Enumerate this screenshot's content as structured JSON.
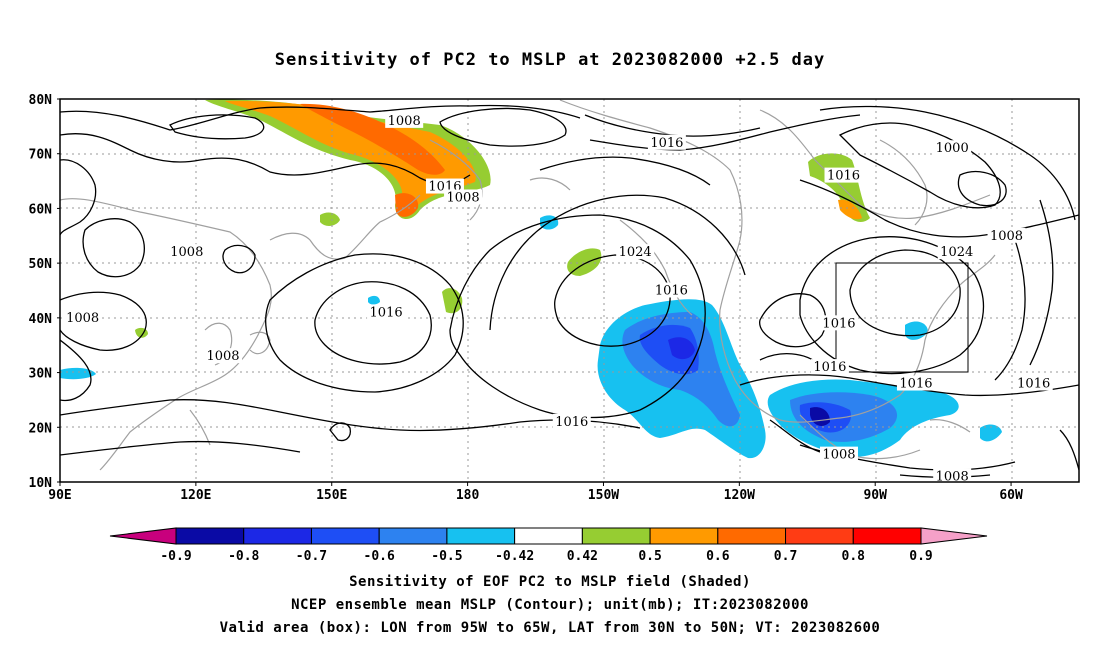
{
  "title": "Sensitivity of PC2 to MSLP at 2023082000 +2.5 day",
  "map": {
    "lat_labels": [
      "80N",
      "70N",
      "60N",
      "50N",
      "40N",
      "30N",
      "20N",
      "10N"
    ],
    "lon_labels": [
      "90E",
      "120E",
      "150E",
      "180",
      "150W",
      "120W",
      "90W",
      "60W"
    ],
    "isobar_labels": [
      {
        "text": "1008",
        "lon": 166,
        "lat": 76
      },
      {
        "text": "1016",
        "lon": -136,
        "lat": 72
      },
      {
        "text": "1000",
        "lon": -73,
        "lat": 71
      },
      {
        "text": "1016",
        "lon": 175,
        "lat": 64
      },
      {
        "text": "1008",
        "lon": 179,
        "lat": 62
      },
      {
        "text": "1016",
        "lon": -97,
        "lat": 66
      },
      {
        "text": "1008",
        "lon": -61,
        "lat": 55
      },
      {
        "text": "1008",
        "lon": 118,
        "lat": 52
      },
      {
        "text": "1024",
        "lon": -143,
        "lat": 52
      },
      {
        "text": "1024",
        "lon": -72,
        "lat": 52
      },
      {
        "text": "1016",
        "lon": -135,
        "lat": 45
      },
      {
        "text": "1016",
        "lon": 162,
        "lat": 41
      },
      {
        "text": "1008",
        "lon": 95,
        "lat": 40
      },
      {
        "text": "1016",
        "lon": -98,
        "lat": 39
      },
      {
        "text": "1008",
        "lon": 126,
        "lat": 33
      },
      {
        "text": "1016",
        "lon": -100,
        "lat": 31
      },
      {
        "text": "1016",
        "lon": -81,
        "lat": 28
      },
      {
        "text": "1016",
        "lon": -55,
        "lat": 28
      },
      {
        "text": "1016",
        "lon": -157,
        "lat": 21
      },
      {
        "text": "1008",
        "lon": -98,
        "lat": 15
      },
      {
        "text": "1008",
        "lon": -73,
        "lat": 11
      }
    ]
  },
  "valid_box": {
    "lon_min": -95,
    "lon_max": -65,
    "lat_min": 30,
    "lat_max": 50
  },
  "colorbar": {
    "labels": [
      "-0.9",
      "-0.8",
      "-0.7",
      "-0.6",
      "-0.5",
      "-0.42",
      "0.42",
      "0.5",
      "0.6",
      "0.7",
      "0.8",
      "0.9"
    ],
    "colors": [
      "#0a0aa5",
      "#1c28e6",
      "#1e4ef5",
      "#2d82f0",
      "#17c1f0",
      "#ffffff",
      "#96cd32",
      "#ff9a00",
      "#ff6a00",
      "#ff3c14",
      "#ff0000"
    ],
    "end_low": "#c8007d",
    "end_high": "#f5a0c8"
  },
  "captions": {
    "line1": "Sensitivity of EOF PC2 to MSLP field (Shaded)",
    "line2": "NCEP ensemble mean MSLP (Contour); unit(mb); IT:2023082000",
    "line3": "Valid area (box): LON from 95W to 65W, LAT from 30N to 50N; VT: 2023082600"
  }
}
